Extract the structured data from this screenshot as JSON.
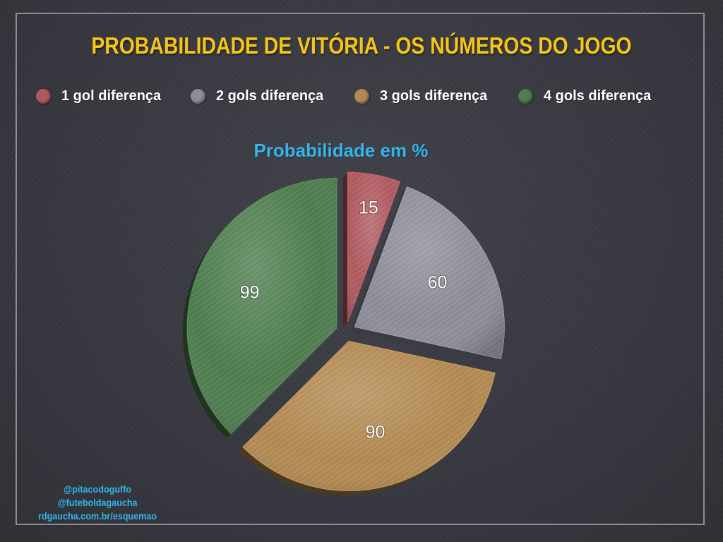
{
  "title": "PROBABILIDADE DE VITÓRIA - OS NÚMEROS DO JOGO",
  "colors": {
    "title": "#f5c518",
    "subtitle": "#34b6e8",
    "credits": "#2fb6ea",
    "background": "#3a3a42"
  },
  "chart_data": {
    "type": "pie",
    "title": "PROBABILIDADE DE VITÓRIA - OS NÚMEROS DO JOGO",
    "subtitle": "Probabilidade em %",
    "legend_position": "top",
    "categories": [
      "1 gol diferença",
      "2 gols diferença",
      "3 gols diferença",
      "4 gols diferença"
    ],
    "values": [
      15,
      60,
      90,
      99
    ],
    "data_labels": [
      "15",
      "60",
      "90",
      "99"
    ],
    "colors": [
      "#b05a60",
      "#8d8e98",
      "#b38a52",
      "#4f7e4f"
    ],
    "exploded": true
  },
  "credits": [
    "@pitacodoguffo",
    "@futeboldagaucha",
    "rdgaucha.com.br/esquemao"
  ]
}
